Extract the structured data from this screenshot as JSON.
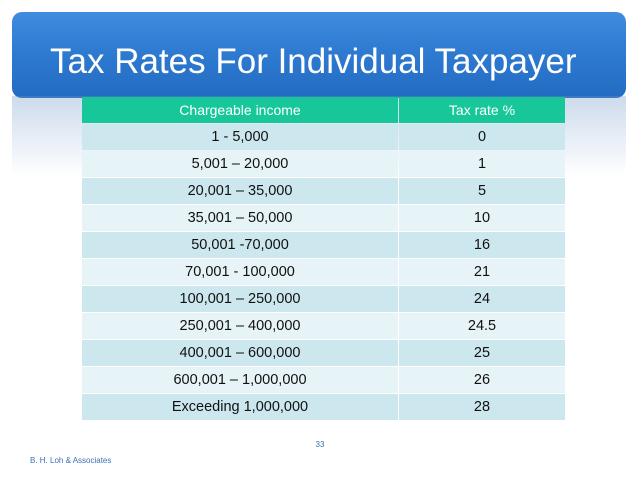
{
  "slide": {
    "title": "Tax Rates For Individual Taxpayer",
    "page_number": "33",
    "footer": "B. H. Loh & Associates"
  },
  "table": {
    "headers": [
      "Chargeable income",
      "Tax rate %"
    ],
    "rows": [
      [
        "1  - 5,000",
        "0"
      ],
      [
        "5,001 – 20,000",
        "1"
      ],
      [
        "20,001 – 35,000",
        "5"
      ],
      [
        "35,001 – 50,000",
        "10"
      ],
      [
        "50,001 -70,000",
        "16"
      ],
      [
        "70,001  - 100,000",
        "21"
      ],
      [
        "100,001 – 250,000",
        "24"
      ],
      [
        "250,001 – 400,000",
        "24.5"
      ],
      [
        "400,001 – 600,000",
        "25"
      ],
      [
        "600,001 – 1,000,000",
        "26"
      ],
      [
        "Exceeding 1,000,000",
        "28"
      ]
    ]
  },
  "colors": {
    "header_band": "#2f7bd2",
    "table_header": "#17c79a",
    "row_dark": "#cde7ee",
    "row_light": "#e6f3f7"
  }
}
